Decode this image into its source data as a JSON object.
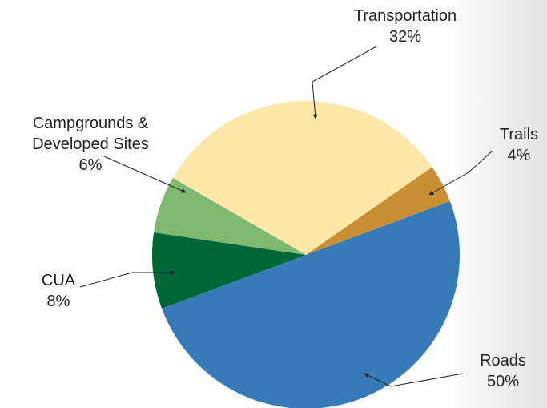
{
  "chart_data": {
    "type": "pie",
    "categories": [
      "Transportation",
      "Trails",
      "Roads",
      "CUA",
      "Campgrounds & Developed Sites"
    ],
    "values": [
      32,
      4,
      50,
      8,
      6
    ],
    "value_labels": [
      "32%",
      "4%",
      "50%",
      "8%",
      "6%"
    ],
    "colors": [
      "#fde7a9",
      "#c98f34",
      "#367bb8",
      "#006838",
      "#7fb86f"
    ]
  }
}
